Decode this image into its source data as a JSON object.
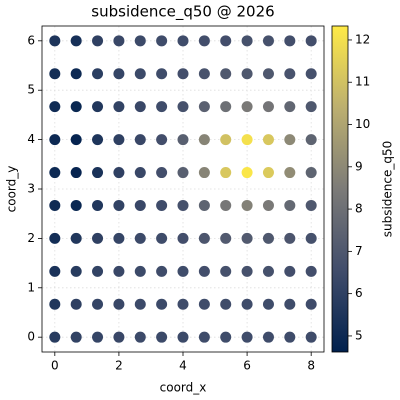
{
  "chart_data": {
    "type": "scatter",
    "title": "subsidence_q50 @ 2026",
    "x_label": "coord_x",
    "y_label": "coord_y",
    "colorbar_label": "subsidence_q50",
    "x": [
      0,
      0.667,
      1.333,
      2,
      2.667,
      3.333,
      4,
      4.667,
      5.333,
      6,
      6.667,
      7.333,
      8
    ],
    "y": [
      6,
      5.333,
      4.667,
      4,
      3.333,
      2.667,
      2,
      1.333,
      0.667,
      0
    ],
    "values": [
      [
        5.5,
        5.3,
        6.0,
        6.3,
        6.4,
        6.5,
        6.5,
        6.6,
        6.6,
        6.7,
        6.7,
        6.6,
        6.6
      ],
      [
        5.2,
        5.0,
        5.9,
        6.2,
        6.4,
        6.5,
        6.6,
        6.8,
        7.0,
        7.0,
        7.0,
        6.8,
        6.7
      ],
      [
        5.1,
        4.9,
        5.6,
        6.1,
        6.3,
        6.5,
        6.7,
        7.4,
        8.0,
        8.4,
        8.2,
        7.6,
        7.0
      ],
      [
        5.0,
        4.8,
        5.5,
        6.0,
        6.3,
        6.6,
        7.3,
        8.8,
        11.0,
        12.0,
        11.2,
        9.0,
        7.5
      ],
      [
        5.0,
        4.8,
        5.4,
        6.0,
        6.3,
        6.6,
        7.3,
        8.8,
        11.2,
        12.2,
        11.3,
        9.1,
        7.5
      ],
      [
        5.1,
        4.9,
        5.6,
        6.1,
        6.3,
        6.5,
        6.7,
        7.5,
        8.3,
        8.7,
        8.4,
        7.7,
        7.0
      ],
      [
        5.2,
        5.6,
        6.0,
        6.2,
        6.4,
        6.5,
        6.6,
        6.9,
        7.1,
        7.1,
        7.0,
        6.9,
        6.7
      ],
      [
        5.4,
        5.8,
        6.1,
        6.3,
        6.4,
        6.5,
        6.5,
        6.6,
        6.7,
        6.7,
        6.7,
        6.6,
        6.6
      ],
      [
        5.6,
        6.0,
        6.2,
        6.3,
        6.4,
        6.4,
        6.5,
        6.5,
        6.5,
        6.5,
        6.5,
        6.5,
        6.5
      ],
      [
        5.8,
        6.1,
        6.2,
        6.3,
        6.4,
        6.4,
        6.4,
        6.5,
        6.5,
        6.5,
        6.5,
        6.5,
        6.5
      ]
    ],
    "xlim": [
      -0.4,
      8.4
    ],
    "ylim": [
      -0.3,
      6.3
    ],
    "xticks": [
      0,
      2,
      4,
      6,
      8
    ],
    "yticks": [
      0,
      1,
      2,
      3,
      4,
      5,
      6
    ],
    "clim": [
      4.62,
      12.33
    ],
    "cticks": [
      5,
      6,
      7,
      8,
      9,
      10,
      11,
      12
    ],
    "colormap": [
      "#00204d",
      "#414d6b",
      "#7c7b78",
      "#bcaf6f",
      "#ffea46"
    ],
    "grid": true
  }
}
